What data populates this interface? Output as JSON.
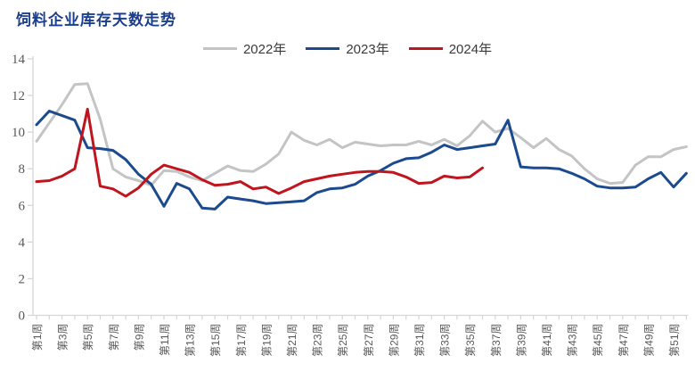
{
  "page": {
    "title": "饲料企业库存天数走势"
  },
  "colors": {
    "title": "#1b3f8f",
    "axis": "#d6d6d6",
    "tick_label": "#595959",
    "legend_text": "#3a3a3a"
  },
  "chart_data": {
    "type": "line",
    "title": "饲料企业库存天数走势",
    "xlabel": "",
    "ylabel": "",
    "ylim": [
      0,
      14
    ],
    "ytick_step": 2,
    "ytick_labels": [
      "0",
      "2",
      "4",
      "6",
      "8",
      "10",
      "12",
      "14"
    ],
    "grid": false,
    "legend_position": "top",
    "x_unit": "week",
    "x_count": 52,
    "x_tick_labels": [
      "第1周",
      "第3周",
      "第5周",
      "第7周",
      "第9周",
      "第11周",
      "第13周",
      "第15周",
      "第17周",
      "第19周",
      "第21周",
      "第23周",
      "第25周",
      "第27周",
      "第29周",
      "第31周",
      "第33周",
      "第35周",
      "第37周",
      "第39周",
      "第41周",
      "第43周",
      "第45周",
      "第47周",
      "第49周",
      "第51周"
    ],
    "series": [
      {
        "name": "2022年",
        "color": "#c3c4c6",
        "values": [
          9.5,
          10.5,
          11.5,
          12.6,
          12.65,
          10.7,
          8.0,
          7.55,
          7.35,
          7.1,
          7.9,
          7.85,
          7.55,
          7.35,
          7.75,
          8.15,
          7.9,
          7.85,
          8.25,
          8.8,
          10.0,
          9.55,
          9.3,
          9.6,
          9.15,
          9.45,
          9.35,
          9.25,
          9.3,
          9.3,
          9.5,
          9.3,
          9.6,
          9.25,
          9.8,
          10.6,
          10.0,
          10.2,
          9.7,
          9.15,
          9.65,
          9.05,
          8.7,
          8.0,
          7.45,
          7.2,
          7.25,
          8.2,
          8.65,
          8.65,
          9.05,
          9.2
        ]
      },
      {
        "name": "2023年",
        "color": "#1b4a8e",
        "values": [
          10.4,
          11.15,
          10.9,
          10.65,
          9.15,
          9.1,
          9.0,
          8.5,
          7.7,
          7.15,
          5.95,
          7.2,
          6.9,
          5.85,
          5.8,
          6.45,
          6.35,
          6.25,
          6.1,
          6.15,
          6.2,
          6.25,
          6.7,
          6.9,
          6.95,
          7.15,
          7.6,
          7.9,
          8.3,
          8.55,
          8.6,
          8.9,
          9.3,
          9.05,
          9.15,
          9.25,
          9.35,
          10.65,
          8.1,
          8.05,
          8.05,
          8.0,
          7.75,
          7.45,
          7.05,
          6.95,
          6.95,
          7.0,
          7.45,
          7.8,
          7.0,
          7.75
        ]
      },
      {
        "name": "2024年",
        "color": "#c0151f",
        "values": [
          7.3,
          7.35,
          7.6,
          8.0,
          11.25,
          7.05,
          6.9,
          6.5,
          6.95,
          7.7,
          8.2,
          8.0,
          7.8,
          7.4,
          7.1,
          7.15,
          7.3,
          6.9,
          7.0,
          6.65,
          6.95,
          7.3,
          7.45,
          7.6,
          7.7,
          7.8,
          7.85,
          7.85,
          7.8,
          7.55,
          7.2,
          7.25,
          7.6,
          7.5,
          7.55,
          8.05
        ]
      }
    ]
  }
}
